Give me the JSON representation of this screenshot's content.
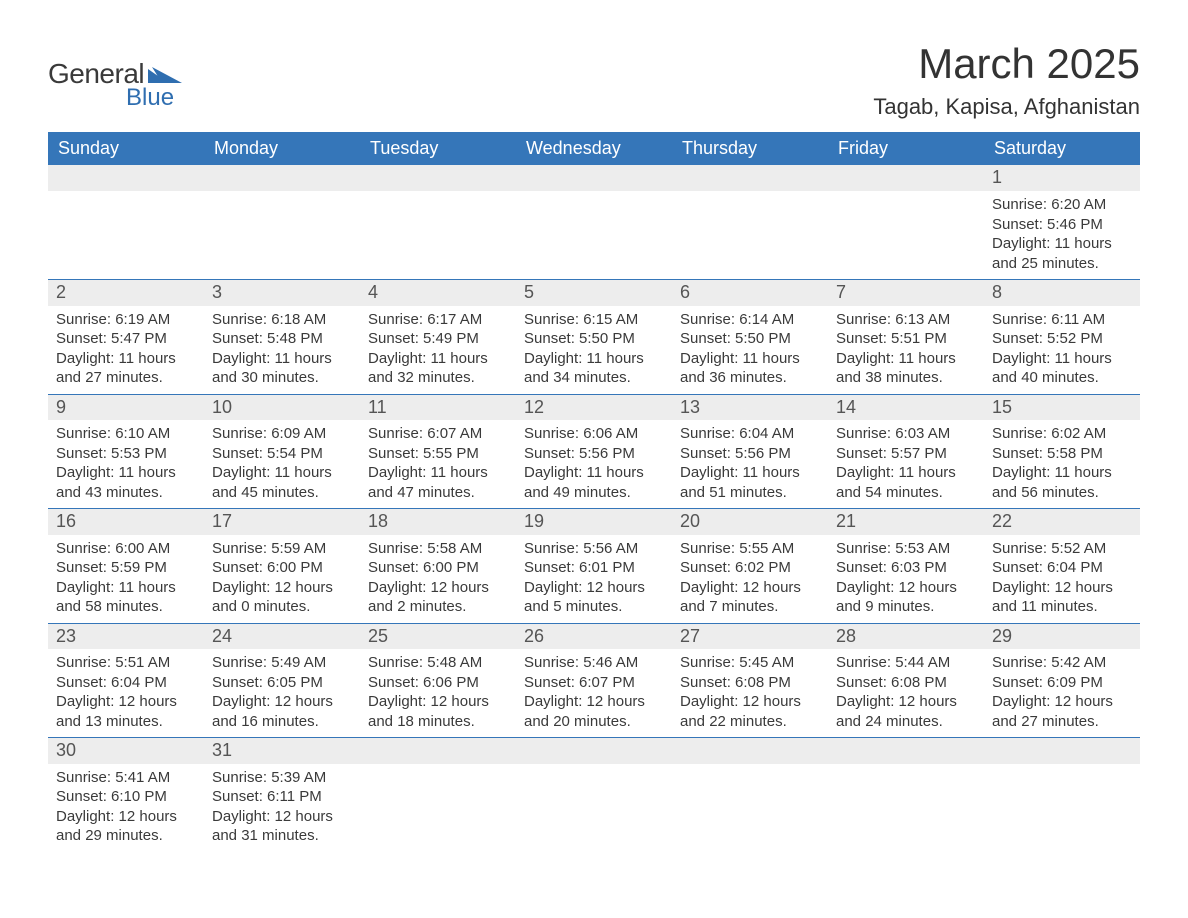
{
  "brand": {
    "general": "General",
    "blue": "Blue",
    "shape_color": "#2f6eb0"
  },
  "title": "March 2025",
  "subtitle": "Tagab, Kapisa, Afghanistan",
  "colors": {
    "header_bg": "#3576b9",
    "header_text": "#ffffff",
    "daynum_bg": "#ededed",
    "grid_line": "#3576b9",
    "text": "#3a3a3a"
  },
  "typography": {
    "title_fontsize": 42,
    "subtitle_fontsize": 22,
    "header_fontsize": 18,
    "daynum_fontsize": 18,
    "body_fontsize": 15
  },
  "layout": {
    "columns": 7,
    "weeks": 6
  },
  "day_headers": [
    "Sunday",
    "Monday",
    "Tuesday",
    "Wednesday",
    "Thursday",
    "Friday",
    "Saturday"
  ],
  "weeks": [
    [
      null,
      null,
      null,
      null,
      null,
      null,
      {
        "n": "1",
        "sunrise": "6:20 AM",
        "sunset": "5:46 PM",
        "dh": "11",
        "dm": "25"
      }
    ],
    [
      {
        "n": "2",
        "sunrise": "6:19 AM",
        "sunset": "5:47 PM",
        "dh": "11",
        "dm": "27"
      },
      {
        "n": "3",
        "sunrise": "6:18 AM",
        "sunset": "5:48 PM",
        "dh": "11",
        "dm": "30"
      },
      {
        "n": "4",
        "sunrise": "6:17 AM",
        "sunset": "5:49 PM",
        "dh": "11",
        "dm": "32"
      },
      {
        "n": "5",
        "sunrise": "6:15 AM",
        "sunset": "5:50 PM",
        "dh": "11",
        "dm": "34"
      },
      {
        "n": "6",
        "sunrise": "6:14 AM",
        "sunset": "5:50 PM",
        "dh": "11",
        "dm": "36"
      },
      {
        "n": "7",
        "sunrise": "6:13 AM",
        "sunset": "5:51 PM",
        "dh": "11",
        "dm": "38"
      },
      {
        "n": "8",
        "sunrise": "6:11 AM",
        "sunset": "5:52 PM",
        "dh": "11",
        "dm": "40"
      }
    ],
    [
      {
        "n": "9",
        "sunrise": "6:10 AM",
        "sunset": "5:53 PM",
        "dh": "11",
        "dm": "43"
      },
      {
        "n": "10",
        "sunrise": "6:09 AM",
        "sunset": "5:54 PM",
        "dh": "11",
        "dm": "45"
      },
      {
        "n": "11",
        "sunrise": "6:07 AM",
        "sunset": "5:55 PM",
        "dh": "11",
        "dm": "47"
      },
      {
        "n": "12",
        "sunrise": "6:06 AM",
        "sunset": "5:56 PM",
        "dh": "11",
        "dm": "49"
      },
      {
        "n": "13",
        "sunrise": "6:04 AM",
        "sunset": "5:56 PM",
        "dh": "11",
        "dm": "51"
      },
      {
        "n": "14",
        "sunrise": "6:03 AM",
        "sunset": "5:57 PM",
        "dh": "11",
        "dm": "54"
      },
      {
        "n": "15",
        "sunrise": "6:02 AM",
        "sunset": "5:58 PM",
        "dh": "11",
        "dm": "56"
      }
    ],
    [
      {
        "n": "16",
        "sunrise": "6:00 AM",
        "sunset": "5:59 PM",
        "dh": "11",
        "dm": "58"
      },
      {
        "n": "17",
        "sunrise": "5:59 AM",
        "sunset": "6:00 PM",
        "dh": "12",
        "dm": "0"
      },
      {
        "n": "18",
        "sunrise": "5:58 AM",
        "sunset": "6:00 PM",
        "dh": "12",
        "dm": "2"
      },
      {
        "n": "19",
        "sunrise": "5:56 AM",
        "sunset": "6:01 PM",
        "dh": "12",
        "dm": "5"
      },
      {
        "n": "20",
        "sunrise": "5:55 AM",
        "sunset": "6:02 PM",
        "dh": "12",
        "dm": "7"
      },
      {
        "n": "21",
        "sunrise": "5:53 AM",
        "sunset": "6:03 PM",
        "dh": "12",
        "dm": "9"
      },
      {
        "n": "22",
        "sunrise": "5:52 AM",
        "sunset": "6:04 PM",
        "dh": "12",
        "dm": "11"
      }
    ],
    [
      {
        "n": "23",
        "sunrise": "5:51 AM",
        "sunset": "6:04 PM",
        "dh": "12",
        "dm": "13"
      },
      {
        "n": "24",
        "sunrise": "5:49 AM",
        "sunset": "6:05 PM",
        "dh": "12",
        "dm": "16"
      },
      {
        "n": "25",
        "sunrise": "5:48 AM",
        "sunset": "6:06 PM",
        "dh": "12",
        "dm": "18"
      },
      {
        "n": "26",
        "sunrise": "5:46 AM",
        "sunset": "6:07 PM",
        "dh": "12",
        "dm": "20"
      },
      {
        "n": "27",
        "sunrise": "5:45 AM",
        "sunset": "6:08 PM",
        "dh": "12",
        "dm": "22"
      },
      {
        "n": "28",
        "sunrise": "5:44 AM",
        "sunset": "6:08 PM",
        "dh": "12",
        "dm": "24"
      },
      {
        "n": "29",
        "sunrise": "5:42 AM",
        "sunset": "6:09 PM",
        "dh": "12",
        "dm": "27"
      }
    ],
    [
      {
        "n": "30",
        "sunrise": "5:41 AM",
        "sunset": "6:10 PM",
        "dh": "12",
        "dm": "29"
      },
      {
        "n": "31",
        "sunrise": "5:39 AM",
        "sunset": "6:11 PM",
        "dh": "12",
        "dm": "31"
      },
      null,
      null,
      null,
      null,
      null
    ]
  ],
  "labels": {
    "sunrise_prefix": "Sunrise: ",
    "sunset_prefix": "Sunset: ",
    "daylight_prefix": "Daylight: ",
    "hours_word": " hours",
    "and_word": "and ",
    "minutes_word": " minutes."
  }
}
